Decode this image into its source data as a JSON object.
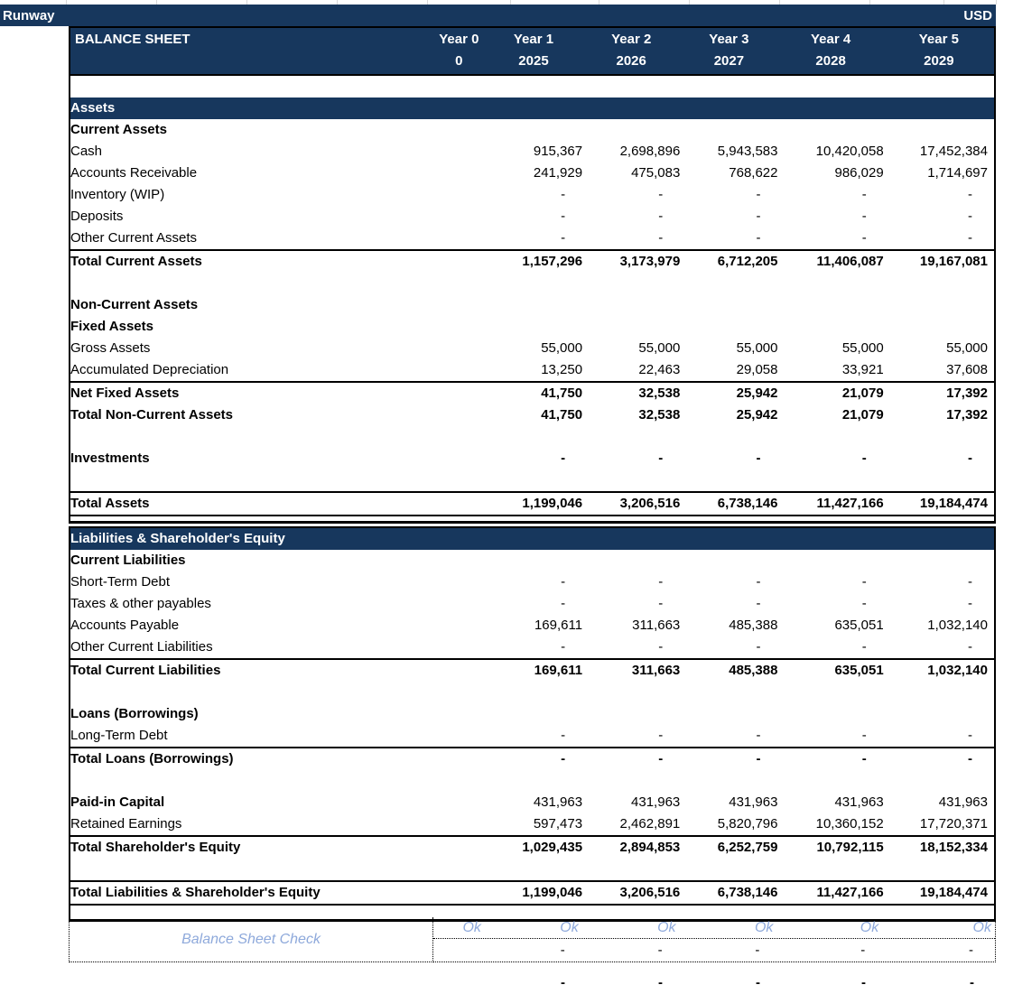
{
  "titlebar": {
    "app_name": "Runway",
    "currency": "USD"
  },
  "header": {
    "title": "BALANCE SHEET",
    "columns": [
      {
        "label": "Year 0",
        "sub": "0"
      },
      {
        "label": "Year 1",
        "sub": "2025"
      },
      {
        "label": "Year 2",
        "sub": "2026"
      },
      {
        "label": "Year 3",
        "sub": "2027"
      },
      {
        "label": "Year 4",
        "sub": "2028"
      },
      {
        "label": "Year 5",
        "sub": "2029"
      }
    ]
  },
  "colors": {
    "navy": "#17375D",
    "check_blue": "#8EA9DB",
    "gridline_gray": "#D9D9D9",
    "border_black": "#000000"
  },
  "assets_block": {
    "rows": [
      {
        "type": "band",
        "label": "Assets"
      },
      {
        "type": "heading",
        "label": "Current Assets"
      },
      {
        "type": "item",
        "label": "Cash",
        "values": [
          "",
          "915,367",
          "2,698,896",
          "5,943,583",
          "10,420,058",
          "17,452,384"
        ]
      },
      {
        "type": "item",
        "label": "Accounts Receivable",
        "values": [
          "",
          "241,929",
          "475,083",
          "768,622",
          "986,029",
          "1,714,697"
        ]
      },
      {
        "type": "item",
        "label": "Inventory (WIP)",
        "values": [
          "",
          "-",
          "-",
          "-",
          "-",
          "-"
        ]
      },
      {
        "type": "item",
        "label": "Deposits",
        "values": [
          "",
          "-",
          "-",
          "-",
          "-",
          "-"
        ]
      },
      {
        "type": "item",
        "label": "Other Current Assets",
        "values": [
          "",
          "-",
          "-",
          "-",
          "-",
          "-"
        ]
      },
      {
        "type": "total",
        "label": "Total Current Assets",
        "values": [
          "",
          "1,157,296",
          "3,173,979",
          "6,712,205",
          "11,406,087",
          "19,167,081"
        ],
        "top_border": true
      },
      {
        "type": "blank"
      },
      {
        "type": "heading",
        "label": "Non-Current Assets"
      },
      {
        "type": "heading",
        "label": "Fixed Assets"
      },
      {
        "type": "item",
        "label": "Gross Assets",
        "values": [
          "",
          "55,000",
          "55,000",
          "55,000",
          "55,000",
          "55,000"
        ]
      },
      {
        "type": "item",
        "label": "Accumulated Depreciation",
        "values": [
          "",
          "13,250",
          "22,463",
          "29,058",
          "33,921",
          "37,608"
        ]
      },
      {
        "type": "total",
        "label": "Net Fixed Assets",
        "values": [
          "",
          "41,750",
          "32,538",
          "25,942",
          "21,079",
          "17,392"
        ],
        "top_border": true
      },
      {
        "type": "total",
        "label": "Total Non-Current Assets",
        "values": [
          "",
          "41,750",
          "32,538",
          "25,942",
          "21,079",
          "17,392"
        ]
      },
      {
        "type": "blank"
      },
      {
        "type": "total",
        "label": "Investments",
        "values": [
          "",
          "-",
          "-",
          "-",
          "-",
          "-"
        ]
      },
      {
        "type": "blank"
      },
      {
        "type": "grand",
        "label": "Total Assets",
        "values": [
          "",
          "1,199,046",
          "3,206,516",
          "6,738,146",
          "11,427,166",
          "19,184,474"
        ],
        "top_border": true,
        "bottom_border": true
      },
      {
        "type": "spacer"
      }
    ]
  },
  "liabilities_block": {
    "rows": [
      {
        "type": "band",
        "label": "Liabilities & Shareholder's Equity"
      },
      {
        "type": "heading",
        "label": "Current Liabilities"
      },
      {
        "type": "item",
        "label": "Short-Term Debt",
        "values": [
          "",
          "-",
          "-",
          "-",
          "-",
          "-"
        ]
      },
      {
        "type": "item",
        "label": "Taxes & other payables",
        "values": [
          "",
          "-",
          "-",
          "-",
          "-",
          "-"
        ]
      },
      {
        "type": "item",
        "label": "Accounts Payable",
        "values": [
          "",
          "169,611",
          "311,663",
          "485,388",
          "635,051",
          "1,032,140"
        ]
      },
      {
        "type": "item",
        "label": "Other Current Liabilities",
        "values": [
          "",
          "-",
          "-",
          "-",
          "-",
          "-"
        ]
      },
      {
        "type": "total",
        "label": "Total Current Liabilities",
        "values": [
          "",
          "169,611",
          "311,663",
          "485,388",
          "635,051",
          "1,032,140"
        ],
        "top_border": true
      },
      {
        "type": "blank"
      },
      {
        "type": "heading",
        "label": "Loans (Borrowings)"
      },
      {
        "type": "item",
        "label": "Long-Term Debt",
        "values": [
          "",
          "-",
          "-",
          "-",
          "-",
          "-"
        ]
      },
      {
        "type": "total",
        "label": "Total Loans (Borrowings)",
        "values": [
          "",
          "-",
          "-",
          "-",
          "-",
          "-"
        ],
        "top_border": true
      },
      {
        "type": "blank"
      },
      {
        "type": "heading_row",
        "label": "Paid-in Capital",
        "values": [
          "",
          "431,963",
          "431,963",
          "431,963",
          "431,963",
          "431,963"
        ]
      },
      {
        "type": "item",
        "label": "Retained Earnings",
        "values": [
          "",
          "597,473",
          "2,462,891",
          "5,820,796",
          "10,360,152",
          "17,720,371"
        ]
      },
      {
        "type": "total",
        "label": "Total Shareholder's Equity",
        "values": [
          "",
          "1,029,435",
          "2,894,853",
          "6,252,759",
          "10,792,115",
          "18,152,334"
        ],
        "top_border": true
      },
      {
        "type": "blank"
      },
      {
        "type": "grand",
        "label": "Total Liabilities & Shareholder's Equity",
        "values": [
          "",
          "1,199,046",
          "3,206,516",
          "6,738,146",
          "11,427,166",
          "19,184,474"
        ],
        "top_border": true,
        "bottom_border": true
      },
      {
        "type": "blank_short"
      }
    ]
  },
  "check": {
    "label": "Balance Sheet Check",
    "ok_values": [
      "Ok",
      "Ok",
      "Ok",
      "Ok",
      "Ok",
      "Ok"
    ],
    "dash_values": [
      "",
      "-",
      "-",
      "-",
      "-",
      "-"
    ],
    "overflow_dash_values": [
      "",
      "-",
      "-",
      "-",
      "-",
      "-"
    ]
  }
}
